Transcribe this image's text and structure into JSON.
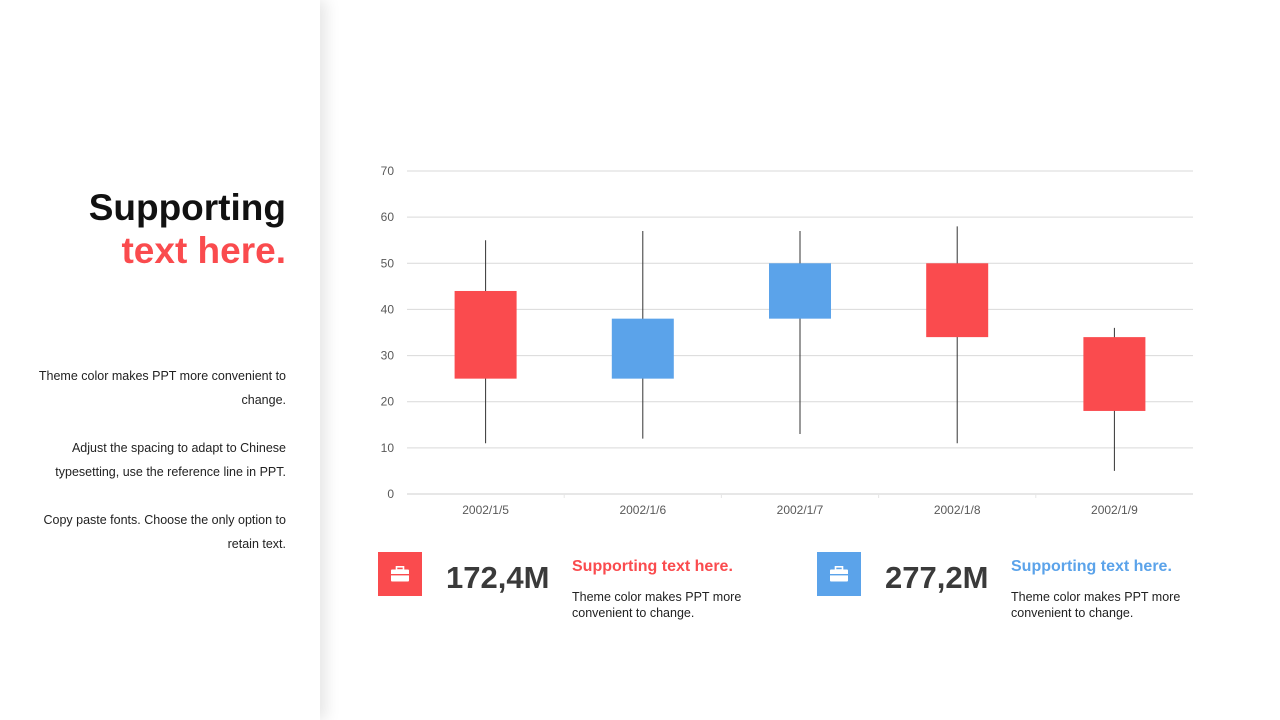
{
  "colors": {
    "accent_red": "#FA4B4E",
    "accent_blue": "#5BA3EA",
    "grid": "#d9d9d9",
    "axis_text": "#595959"
  },
  "left": {
    "title_line1": "Supporting",
    "title_line2": "text here.",
    "paragraphs": [
      "Theme color makes PPT more convenient to change.",
      "Adjust the spacing to adapt to Chinese typesetting, use the reference line in PPT.",
      "Copy paste  fonts. Choose the only option to retain text."
    ]
  },
  "stats": [
    {
      "icon": "briefcase-icon",
      "value": "172,4M",
      "heading": "Supporting text here.",
      "body": "Theme color makes PPT more convenient to change."
    },
    {
      "icon": "briefcase-icon",
      "value": "277,2M",
      "heading": "Supporting text here.",
      "body": "Theme color makes PPT more convenient to change."
    }
  ],
  "chart_data": {
    "type": "candlestick",
    "categories": [
      "2002/1/5",
      "2002/1/6",
      "2002/1/7",
      "2002/1/8",
      "2002/1/9"
    ],
    "ylim": [
      0,
      70
    ],
    "yticks": [
      0,
      10,
      20,
      30,
      40,
      50,
      60,
      70
    ],
    "grid": true,
    "series": [
      {
        "open": 44,
        "high": 55,
        "low": 11,
        "close": 25
      },
      {
        "open": 25,
        "high": 57,
        "low": 12,
        "close": 38
      },
      {
        "open": 38,
        "high": 57,
        "low": 13,
        "close": 50
      },
      {
        "open": 50,
        "high": 58,
        "low": 11,
        "close": 34
      },
      {
        "open": 34,
        "high": 36,
        "low": 5,
        "close": 18
      }
    ],
    "up_color": "#5BA3EA",
    "down_color": "#FA4B4E"
  }
}
